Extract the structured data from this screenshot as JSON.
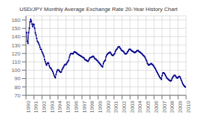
{
  "chart_data": {
    "type": "line",
    "title": "USD/JPY Monthly Average Exchange Rate 20-Year History Chart",
    "x": [
      1990,
      1990.083333,
      1990.166667,
      1990.25,
      1990.333333,
      1990.416667,
      1990.5,
      1990.583333,
      1990.666667,
      1990.75,
      1990.833333,
      1990.916667,
      1991,
      1991.083333,
      1991.166667,
      1991.25,
      1991.333333,
      1991.416667,
      1991.5,
      1991.583333,
      1991.666667,
      1991.75,
      1991.833333,
      1991.916667,
      1992,
      1992.083333,
      1992.166667,
      1992.25,
      1992.333333,
      1992.416667,
      1992.5,
      1992.583333,
      1992.666667,
      1992.75,
      1992.833333,
      1992.916667,
      1993,
      1993.083333,
      1993.166667,
      1993.25,
      1993.333333,
      1993.416667,
      1993.5,
      1993.583333,
      1993.666667,
      1993.75,
      1993.833333,
      1993.916667,
      1994,
      1994.083333,
      1994.166667,
      1994.25,
      1994.333333,
      1994.416667,
      1994.5,
      1994.583333,
      1994.666667,
      1994.75,
      1994.833333,
      1994.916667,
      1995,
      1995.083333,
      1995.166667,
      1995.25,
      1995.333333,
      1995.416667,
      1995.5,
      1995.583333,
      1995.666667,
      1995.75,
      1995.833333,
      1995.916667,
      1996,
      1996.083333,
      1996.166667,
      1996.25,
      1996.333333,
      1996.416667,
      1996.5,
      1996.583333,
      1996.666667,
      1996.75,
      1996.833333,
      1996.916667,
      1997,
      1997.083333,
      1997.166667,
      1997.25,
      1997.333333,
      1997.416667,
      1997.5,
      1997.583333,
      1997.666667,
      1997.75,
      1997.833333,
      1997.916667,
      1998,
      1998.083333,
      1998.166667,
      1998.25,
      1998.333333,
      1998.416667,
      1998.5,
      1998.583333,
      1998.666667,
      1998.75,
      1998.833333,
      1998.916667,
      1999,
      1999.083333,
      1999.166667,
      1999.25,
      1999.333333,
      1999.416667,
      1999.5,
      1999.583333,
      1999.666667,
      1999.75,
      1999.833333,
      1999.916667,
      2000,
      2000.083333,
      2000.166667,
      2000.25,
      2000.333333,
      2000.416667,
      2000.5,
      2000.583333,
      2000.666667,
      2000.75,
      2000.833333,
      2000.916667,
      2001,
      2001.083333,
      2001.166667,
      2001.25,
      2001.333333,
      2001.416667,
      2001.5,
      2001.583333,
      2001.666667,
      2001.75,
      2001.833333,
      2001.916667,
      2002,
      2002.083333,
      2002.166667,
      2002.25,
      2002.333333,
      2002.416667,
      2002.5,
      2002.583333,
      2002.666667,
      2002.75,
      2002.833333,
      2002.916667,
      2003,
      2003.083333,
      2003.166667,
      2003.25,
      2003.333333,
      2003.416667,
      2003.5,
      2003.583333,
      2003.666667,
      2003.75,
      2003.833333,
      2003.916667,
      2004,
      2004.083333,
      2004.166667,
      2004.25,
      2004.333333,
      2004.416667,
      2004.5,
      2004.583333,
      2004.666667,
      2004.75,
      2004.833333,
      2004.916667,
      2005,
      2005.083333,
      2005.166667,
      2005.25,
      2005.333333,
      2005.416667,
      2005.5,
      2005.583333,
      2005.666667,
      2005.75,
      2005.833333,
      2005.916667,
      2006,
      2006.083333,
      2006.166667,
      2006.25,
      2006.333333,
      2006.416667,
      2006.5,
      2006.583333,
      2006.666667,
      2006.75,
      2006.833333,
      2006.916667,
      2007,
      2007.083333,
      2007.166667,
      2007.25,
      2007.333333,
      2007.416667,
      2007.5,
      2007.583333,
      2007.666667,
      2007.75,
      2007.833333,
      2007.916667,
      2008,
      2008.083333,
      2008.166667,
      2008.25,
      2008.333333,
      2008.416667,
      2008.5,
      2008.583333,
      2008.666667,
      2008.75,
      2008.833333,
      2008.916667,
      2009,
      2009.083333,
      2009.166667,
      2009.25,
      2009.333333,
      2009.416667,
      2009.5,
      2009.583333,
      2009.666667,
      2009.75,
      2009.833333,
      2009.916667
    ],
    "values": [
      144.8,
      145.0,
      134.5,
      132.0,
      145.0,
      150.3,
      157.6,
      160.7,
      158.5,
      155.0,
      152.0,
      155.0,
      154.5,
      150.2,
      144.5,
      142.0,
      138.0,
      134.5,
      133.5,
      132.0,
      130.0,
      127.5,
      125.0,
      124.8,
      122.0,
      120.5,
      118.5,
      116.5,
      112.5,
      110.0,
      107.5,
      106.0,
      108.0,
      109.0,
      108.0,
      105.0,
      103.0,
      102.5,
      101.5,
      100.0,
      98.5,
      96.5,
      94.0,
      92.0,
      91.0,
      95.0,
      98.0,
      100.0,
      100.5,
      100.2,
      99.0,
      98.0,
      97.5,
      98.0,
      100.5,
      102.0,
      103.5,
      105.0,
      106.5,
      107.0,
      106.5,
      108.0,
      109.5,
      110.5,
      112.0,
      115.5,
      118.0,
      119.5,
      120.0,
      120.0,
      119.5,
      120.0,
      121.5,
      122.0,
      121.5,
      121.0,
      120.5,
      119.5,
      119.0,
      118.5,
      118.0,
      117.5,
      117.0,
      116.5,
      116.0,
      115.5,
      115.0,
      114.5,
      113.0,
      112.5,
      112.0,
      111.5,
      111.0,
      110.5,
      112.0,
      113.5,
      115.0,
      115.0,
      115.5,
      116.0,
      116.5,
      116.5,
      115.5,
      114.0,
      113.5,
      113.0,
      112.0,
      111.5,
      110.5,
      109.5,
      108.5,
      107.5,
      106.5,
      105.5,
      104.5,
      104.0,
      108.0,
      110.0,
      111.0,
      112.0,
      116.0,
      118.0,
      119.0,
      120.0,
      120.5,
      121.0,
      121.5,
      120.5,
      119.0,
      118.0,
      117.5,
      118.0,
      119.0,
      120.0,
      122.5,
      124.0,
      125.0,
      126.0,
      127.5,
      128.0,
      128.0,
      126.5,
      125.5,
      124.0,
      123.5,
      123.0,
      122.5,
      121.5,
      120.0,
      119.5,
      119.5,
      120.0,
      121.5,
      122.5,
      124.0,
      125.0,
      125.0,
      124.5,
      123.5,
      123.0,
      122.5,
      122.0,
      121.5,
      121.0,
      121.5,
      122.0,
      123.0,
      123.5,
      123.5,
      122.5,
      122.0,
      121.5,
      121.0,
      120.0,
      119.5,
      118.5,
      117.5,
      117.0,
      116.0,
      114.5,
      112.5,
      111.0,
      108.5,
      107.0,
      106.0,
      106.5,
      107.0,
      107.5,
      108.0,
      107.0,
      106.5,
      105.5,
      104.5,
      103.0,
      102.0,
      100.0,
      98.5,
      97.0,
      95.5,
      94.0,
      92.5,
      91.0,
      90.5,
      89.0,
      93.5,
      96.5,
      97.0,
      96.5,
      95.5,
      94.0,
      92.5,
      91.0,
      90.0,
      89.5,
      88.5,
      88.0,
      87.5,
      87.0,
      88.0,
      90.0,
      91.5,
      92.5,
      93.5,
      94.0,
      93.5,
      92.0,
      91.0,
      90.5,
      91.5,
      92.0,
      92.5,
      92.0,
      90.0,
      88.0,
      86.0,
      84.0,
      82.5,
      81.5,
      80.5,
      80.0
    ],
    "color": "#00008b",
    "marker": "square",
    "xlim": [
      1990,
      2010
    ],
    "xticks": [
      1990,
      1991,
      1992,
      1993,
      1994,
      1995,
      1996,
      1997,
      1998,
      1999,
      2000,
      2001,
      2002,
      2003,
      2004,
      2005,
      2006,
      2007,
      2008,
      2009,
      2010
    ],
    "ylim": [
      70,
      165
    ],
    "yticks": [
      70,
      80,
      90,
      100,
      110,
      120,
      130,
      140,
      150,
      160
    ],
    "grid": true
  }
}
